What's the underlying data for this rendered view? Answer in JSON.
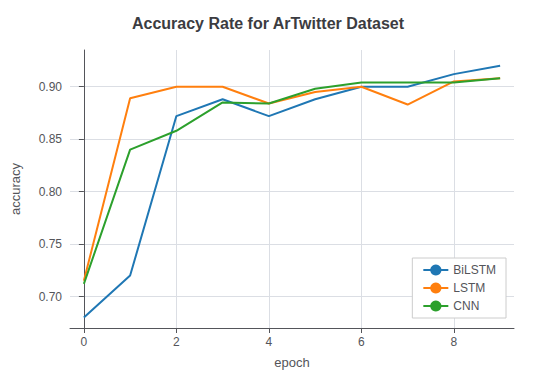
{
  "chart_data": {
    "type": "line",
    "title": "Accuracy Rate for ArTwitter Dataset",
    "xlabel": "epoch",
    "ylabel": "accuracy",
    "x": [
      0,
      1,
      2,
      3,
      4,
      5,
      6,
      7,
      8,
      9
    ],
    "series": [
      {
        "name": "BiLSTM",
        "color": "#1f77b4",
        "values": [
          0.68,
          0.72,
          0.872,
          0.888,
          0.872,
          0.888,
          0.9,
          0.9,
          0.912,
          0.92
        ]
      },
      {
        "name": "LSTM",
        "color": "#ff7f0e",
        "values": [
          0.715,
          0.889,
          0.9,
          0.9,
          0.884,
          0.895,
          0.9,
          0.883,
          0.905,
          0.908
        ]
      },
      {
        "name": "CNN",
        "color": "#2ca02c",
        "values": [
          0.712,
          0.84,
          0.858,
          0.885,
          0.884,
          0.898,
          0.904,
          0.904,
          0.904,
          0.908
        ]
      }
    ],
    "xlim": [
      -0.3,
      9.3
    ],
    "ylim": [
      0.67,
      0.935
    ],
    "xticks": [
      0,
      2,
      4,
      6,
      8
    ],
    "yticks": [
      {
        "value": 0.7,
        "label": "0.70"
      },
      0.75,
      {
        "value": 0.8,
        "label": "0.80"
      },
      0.85,
      {
        "value": 0.9,
        "label": "0.90"
      }
    ],
    "grid": true,
    "legend": "lower right"
  }
}
